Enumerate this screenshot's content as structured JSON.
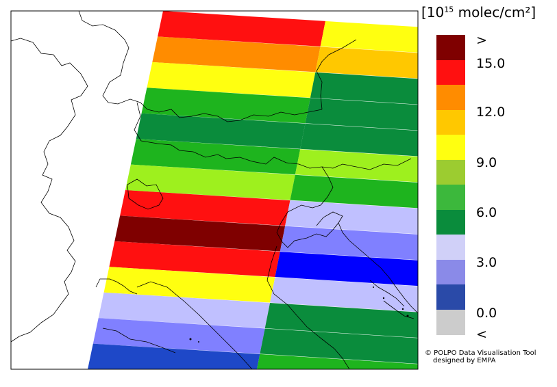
{
  "legend": {
    "title_prefix": "[10",
    "title_exp": "15",
    "title_unit": " molec/cm²]",
    "ticks": [
      ">",
      "15.0",
      "12.0",
      "9.0",
      "6.0",
      "3.0",
      "0.0",
      "<"
    ],
    "colors": [
      "#7f0000",
      "#ff1010",
      "#ff8c00",
      "#ffc800",
      "#ffff10",
      "#9ccc30",
      "#3cb83c",
      "#0a8c3c",
      "#d0d0f8",
      "#8a8ae8",
      "#2a4aa8",
      "#cccccc"
    ]
  },
  "credit": {
    "line1": "© POLPO Data Visualisation Tool",
    "line2": "designed by EMPA"
  },
  "bands": [
    {
      "left": "#ff1010",
      "right": "#ffff10"
    },
    {
      "left": "#ff8c00",
      "right": "#ffc800"
    },
    {
      "left": "#ffff10",
      "right": "#0a8c3c"
    },
    {
      "left": "#1eb41e",
      "right": "#0a8c3c"
    },
    {
      "left": "#0a8c3c",
      "right": "#0a8c3c"
    },
    {
      "left": "#1eb41e",
      "right": "#9ef01e"
    },
    {
      "left": "#9ef01e",
      "right": "#1eb41e"
    },
    {
      "left": "#ff1010",
      "right": "#c0c0ff"
    },
    {
      "left": "#7f0000",
      "right": "#8080ff"
    },
    {
      "left": "#ff1010",
      "right": "#0000ff"
    },
    {
      "left": "#ffff10",
      "right": "#c0c0ff"
    },
    {
      "left": "#c0c0ff",
      "right": "#0a8c3c"
    },
    {
      "left": "#8080ff",
      "right": "#0a8c3c"
    },
    {
      "left": "#1e48c8",
      "right": "#1eb41e"
    }
  ]
}
